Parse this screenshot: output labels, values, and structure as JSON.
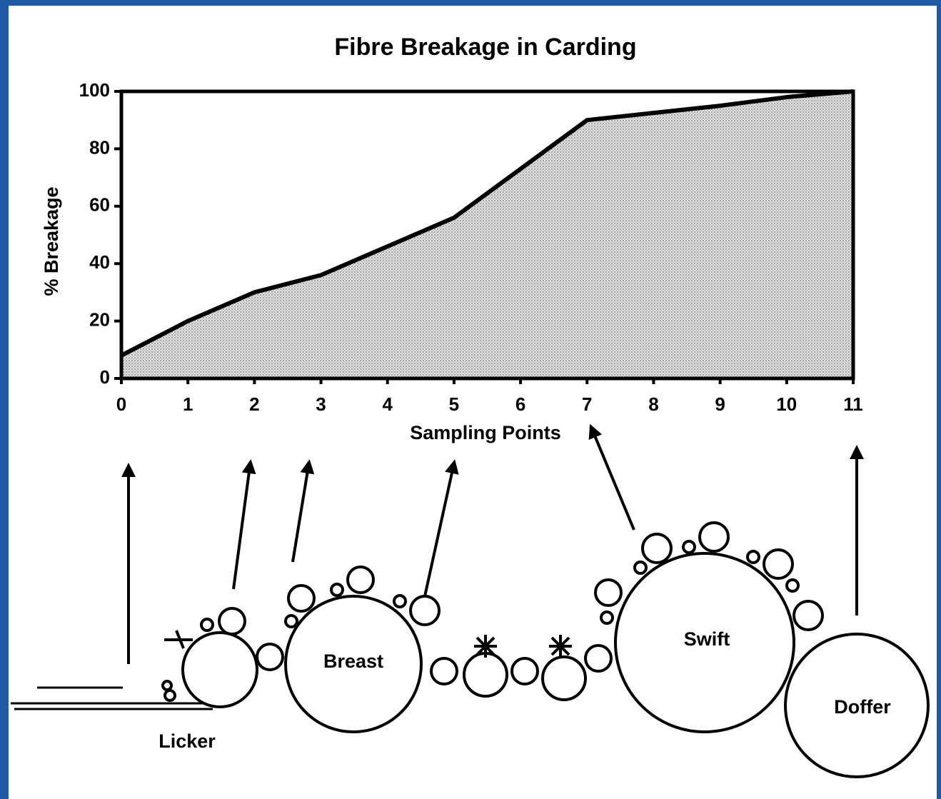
{
  "chart_data": {
    "type": "line",
    "title": "Fibre Breakage in Carding",
    "xlabel": "Sampling Points",
    "ylabel": "% Breakage",
    "x": [
      0,
      1,
      2,
      3,
      4,
      5,
      6,
      7,
      8,
      9,
      10,
      11
    ],
    "series": [
      {
        "name": "Breakage",
        "color": "#000000",
        "values": [
          8,
          20,
          30,
          36,
          46,
          56,
          73,
          90,
          92.5,
          95,
          98,
          100
        ]
      }
    ],
    "xlim": [
      0,
      11
    ],
    "xticks": [
      0,
      1,
      2,
      3,
      4,
      5,
      6,
      7,
      8,
      9,
      10,
      11
    ],
    "ylim": [
      0,
      100
    ],
    "yticks": [
      0,
      20,
      40,
      60,
      80,
      100
    ],
    "fill_under": true
  },
  "diagram": {
    "labels": {
      "licker": "Licker",
      "breast": "Breast",
      "swift": "Swift",
      "doffer": "Doffer"
    }
  }
}
